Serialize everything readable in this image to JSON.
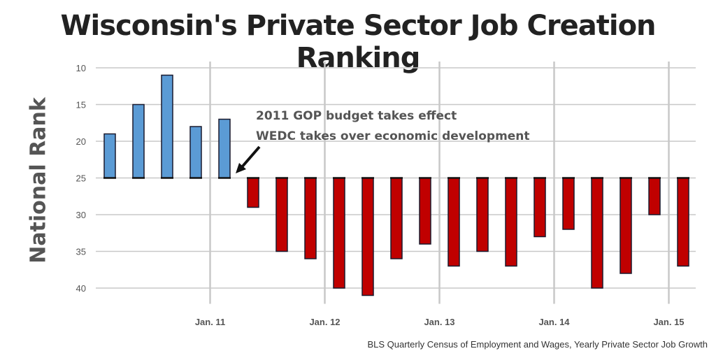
{
  "chart_data": {
    "type": "bar",
    "title": "Wisconsin's Private Sector Job Creation Ranking",
    "ylabel": "National Rank",
    "xlabel": "",
    "baseline": 25,
    "ylim": [
      10,
      41
    ],
    "yticks": [
      10,
      15,
      20,
      25,
      30,
      35,
      40
    ],
    "x_tick_labels": [
      "Jan. 11",
      "Jan. 12",
      "Jan. 13",
      "Jan. 14",
      "Jan. 15"
    ],
    "x_tick_after_bar": [
      3,
      7,
      11,
      15,
      19
    ],
    "values": [
      19,
      15,
      11,
      18,
      17,
      29,
      35,
      36,
      40,
      41,
      36,
      34,
      37,
      35,
      37,
      33,
      32,
      40,
      38,
      30,
      37
    ],
    "colors": {
      "above_baseline": "#5b9bd5",
      "below_baseline": "#c00000",
      "outline": "#1a1a2e",
      "grid": "#c8c8c8"
    },
    "annotations": [
      "2011 GOP budget takes effect",
      "WEDC takes over economic development"
    ],
    "source": "BLS Quarterly Census of Employment and Wages, Yearly Private Sector Job Growth"
  }
}
